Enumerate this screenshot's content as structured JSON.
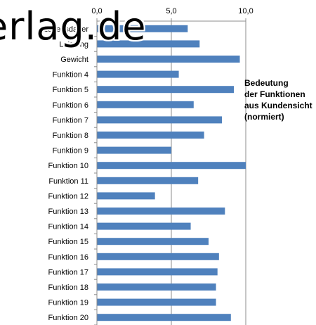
{
  "watermark": "erlag.de",
  "annotation": [
    "Bedeutung",
    "der Funktionen",
    "aus Kundensicht",
    "(normiert)"
  ],
  "chart_data": {
    "type": "bar",
    "orientation": "horizontal",
    "xlim": [
      0,
      10
    ],
    "x_ticks": [
      "0,0",
      "5,0",
      "10,0"
    ],
    "x_tick_values": [
      0,
      5,
      10
    ],
    "grid": true,
    "series_color": "#4f81bd",
    "categories": [
      "Lebensdauer",
      "Leistung",
      "Gewicht",
      "Funktion 4",
      "Funktion 5",
      "Funktion 6",
      "Funktion 7",
      "Funktion 8",
      "Funktion 9",
      "Funktion 10",
      "Funktion 11",
      "Funktion 12",
      "Funktion 13",
      "Funktion 14",
      "Funktion 15",
      "Funktion 16",
      "Funktion 17",
      "Funktion 18",
      "Funktion 19",
      "Funktion 20"
    ],
    "values": [
      6.1,
      6.9,
      9.6,
      5.5,
      9.2,
      6.5,
      8.4,
      7.2,
      5.0,
      10.0,
      6.8,
      3.9,
      8.6,
      6.3,
      7.5,
      8.2,
      8.1,
      8.0,
      8.0,
      9.0
    ]
  }
}
